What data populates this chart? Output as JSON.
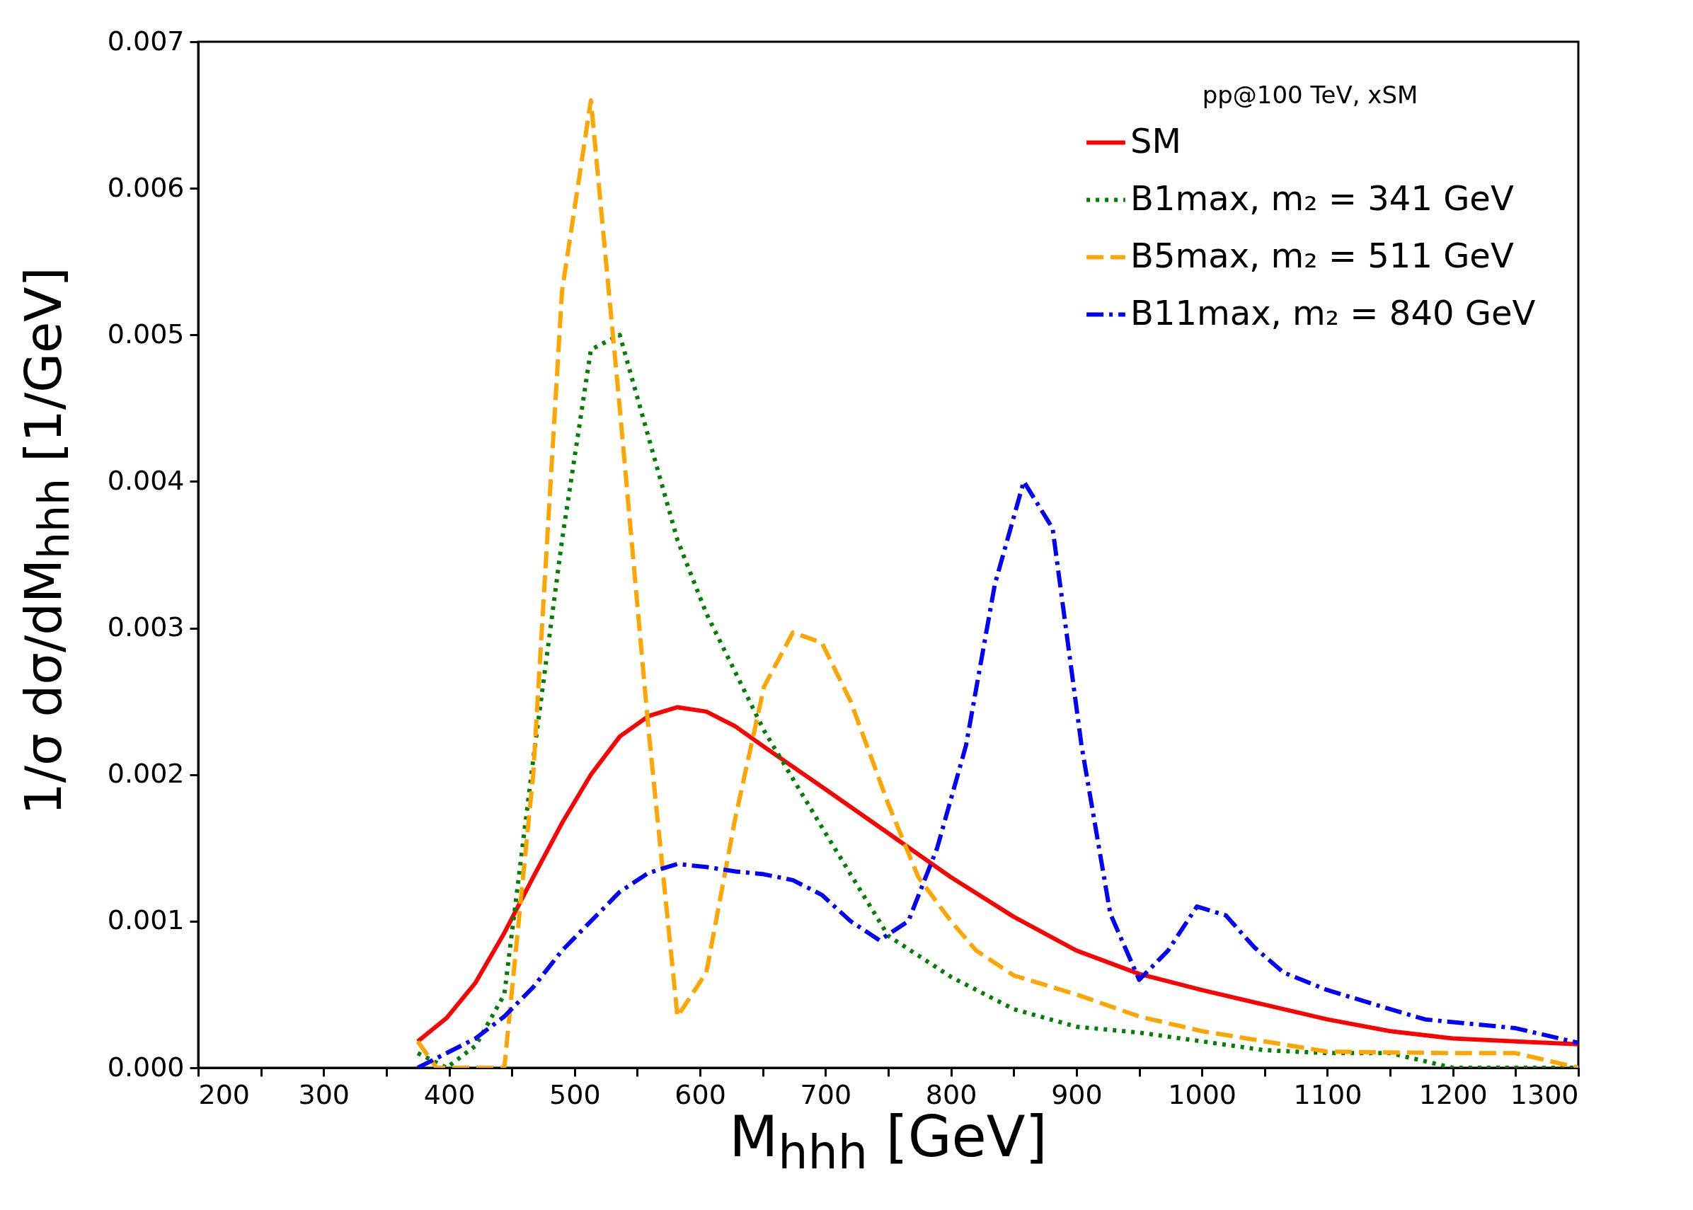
{
  "chart_data": {
    "type": "line",
    "xlabel": "M$_{hhh}$ [GeV]",
    "ylabel": "1/σ dσ/dM$_{hhh}$ [1/GeV]",
    "legend_title": "pp@100 TeV, xSM",
    "xlim": [
      200,
      1300
    ],
    "xticks": [
      200,
      {
        "value": 250,
        "label": null
      },
      300,
      {
        "value": 350,
        "label": null
      },
      400,
      {
        "value": 450,
        "label": null
      },
      500,
      {
        "value": 550,
        "label": null
      },
      600,
      {
        "value": 650,
        "label": null
      },
      700,
      {
        "value": 750,
        "label": null
      },
      800,
      {
        "value": 850,
        "label": null
      },
      900,
      {
        "value": 950,
        "label": null
      },
      1000,
      {
        "value": 1050,
        "label": null
      },
      1100,
      {
        "value": 1150,
        "label": null
      },
      1200,
      {
        "value": 1250,
        "label": null
      },
      1300
    ],
    "ylim": [
      0,
      0.007
    ],
    "yticks": [
      {
        "value": 0,
        "label": "0.000"
      },
      0.001,
      0.002,
      0.003,
      0.004,
      0.005,
      0.006,
      0.007
    ],
    "legend": "top right",
    "grid": false,
    "series": [
      {
        "name": "SM",
        "color": "#ff0000",
        "line_style": "solid",
        "x": [
          375,
          398,
          421,
          444,
          467,
          490,
          513,
          536,
          559,
          582,
          605,
          628,
          651,
          700,
          750,
          800,
          850,
          900,
          950,
          1000,
          1050,
          1100,
          1150,
          1200,
          1250,
          1300
        ],
        "values": [
          0.00018,
          0.00034,
          0.00058,
          0.00092,
          0.0013,
          0.00167,
          0.002,
          0.00226,
          0.0024,
          0.00246,
          0.00243,
          0.00233,
          0.00219,
          0.0019,
          0.0016,
          0.0013,
          0.00103,
          0.0008,
          0.00064,
          0.00053,
          0.00043,
          0.00033,
          0.00025,
          0.0002,
          0.00018,
          0.00016
        ]
      },
      {
        "name": "B1max, m₂ = 341 GeV",
        "color": "#008000",
        "line_style": "dotted",
        "x": [
          375,
          398,
          421,
          444,
          467,
          490,
          513,
          536,
          559,
          582,
          605,
          628,
          651,
          700,
          750,
          800,
          850,
          900,
          950,
          1000,
          1050,
          1100,
          1150,
          1200,
          1300
        ],
        "values": [
          0.0001,
          0.0,
          0.00015,
          0.0005,
          0.0021,
          0.0036,
          0.0049,
          0.005,
          0.0043,
          0.0036,
          0.0031,
          0.0027,
          0.0023,
          0.0016,
          0.0009,
          0.00062,
          0.0004,
          0.00028,
          0.00024,
          0.00018,
          0.00012,
          0.0001,
          0.0001,
          0.0,
          0.0
        ]
      },
      {
        "name": "B5max, m₂ = 511 GeV",
        "color": "#ffa500",
        "line_style": "dashed",
        "x": [
          375,
          390,
          444,
          467,
          490,
          513,
          536,
          559,
          582,
          605,
          628,
          651,
          674,
          697,
          720,
          750,
          774,
          800,
          820,
          850,
          900,
          950,
          1000,
          1050,
          1100,
          1200,
          1250,
          1300
        ],
        "values": [
          0.00018,
          0.0,
          0.0,
          0.002,
          0.0053,
          0.0066,
          0.0045,
          0.0023,
          0.00035,
          0.00065,
          0.0017,
          0.0026,
          0.00297,
          0.0029,
          0.0025,
          0.0018,
          0.0013,
          0.001,
          0.0008,
          0.00063,
          0.0005,
          0.00035,
          0.00025,
          0.00018,
          0.00011,
          0.0001,
          0.0001,
          0.0
        ]
      },
      {
        "name": "B11max, m₂ = 840 GeV",
        "color": "#0000ff",
        "line_style": "dashdot",
        "x": [
          375,
          398,
          421,
          444,
          467,
          490,
          513,
          536,
          559,
          582,
          605,
          628,
          651,
          674,
          697,
          720,
          743,
          766,
          789,
          812,
          835,
          858,
          881,
          904,
          927,
          950,
          973,
          996,
          1019,
          1042,
          1065,
          1100,
          1150,
          1178,
          1250,
          1300
        ],
        "values": [
          0.0,
          0.0001,
          0.0002,
          0.00035,
          0.00055,
          0.0008,
          0.001,
          0.0012,
          0.00133,
          0.00139,
          0.00137,
          0.00134,
          0.00132,
          0.00128,
          0.00118,
          0.001,
          0.00087,
          0.001,
          0.0015,
          0.0022,
          0.0033,
          0.004,
          0.00368,
          0.0022,
          0.00105,
          0.0006,
          0.0008,
          0.0011,
          0.00104,
          0.00082,
          0.00065,
          0.00053,
          0.0004,
          0.00033,
          0.00027,
          0.00017
        ]
      }
    ]
  }
}
